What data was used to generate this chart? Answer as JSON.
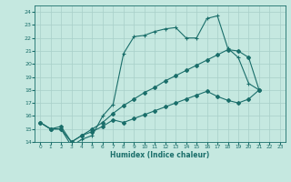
{
  "xlabel": "Humidex (Indice chaleur)",
  "bg_color": "#c5e8e0",
  "grid_color": "#a8cfc8",
  "line_color": "#1a6e6a",
  "xlim": [
    -0.5,
    23.5
  ],
  "ylim": [
    14,
    24.5
  ],
  "xticks": [
    0,
    1,
    2,
    3,
    4,
    5,
    6,
    7,
    8,
    9,
    10,
    11,
    12,
    13,
    14,
    15,
    16,
    17,
    18,
    19,
    20,
    21,
    22,
    23
  ],
  "yticks": [
    14,
    15,
    16,
    17,
    18,
    19,
    20,
    21,
    22,
    23,
    24
  ],
  "line1_x": [
    0,
    1,
    2,
    3,
    4,
    5,
    6,
    7,
    8,
    9,
    10,
    11,
    12,
    13,
    14,
    15,
    16,
    17,
    18,
    19,
    20,
    21
  ],
  "line1_y": [
    15.5,
    15.0,
    15.0,
    13.7,
    14.2,
    14.5,
    16.0,
    16.9,
    20.8,
    22.1,
    22.2,
    22.5,
    22.7,
    22.8,
    22.0,
    22.0,
    23.5,
    23.7,
    21.2,
    20.5,
    18.5,
    18.0
  ],
  "line2_x": [
    0,
    1,
    2,
    3,
    4,
    5,
    6,
    7,
    8,
    9,
    10,
    11,
    12,
    13,
    14,
    15,
    16,
    17,
    18,
    19,
    20,
    21
  ],
  "line2_y": [
    15.5,
    15.0,
    15.0,
    14.0,
    14.5,
    15.0,
    15.5,
    16.2,
    16.8,
    17.3,
    17.8,
    18.2,
    18.7,
    19.1,
    19.5,
    19.9,
    20.3,
    20.7,
    21.1,
    21.0,
    20.5,
    18.0
  ],
  "line3_x": [
    0,
    1,
    2,
    3,
    4,
    5,
    6,
    7,
    8,
    9,
    10,
    11,
    12,
    13,
    14,
    15,
    16,
    17,
    18,
    19,
    20,
    21
  ],
  "line3_y": [
    15.5,
    15.0,
    15.2,
    14.0,
    14.5,
    14.8,
    15.2,
    15.7,
    15.5,
    15.8,
    16.1,
    16.4,
    16.7,
    17.0,
    17.3,
    17.6,
    17.9,
    17.5,
    17.2,
    17.0,
    17.3,
    18.0
  ]
}
